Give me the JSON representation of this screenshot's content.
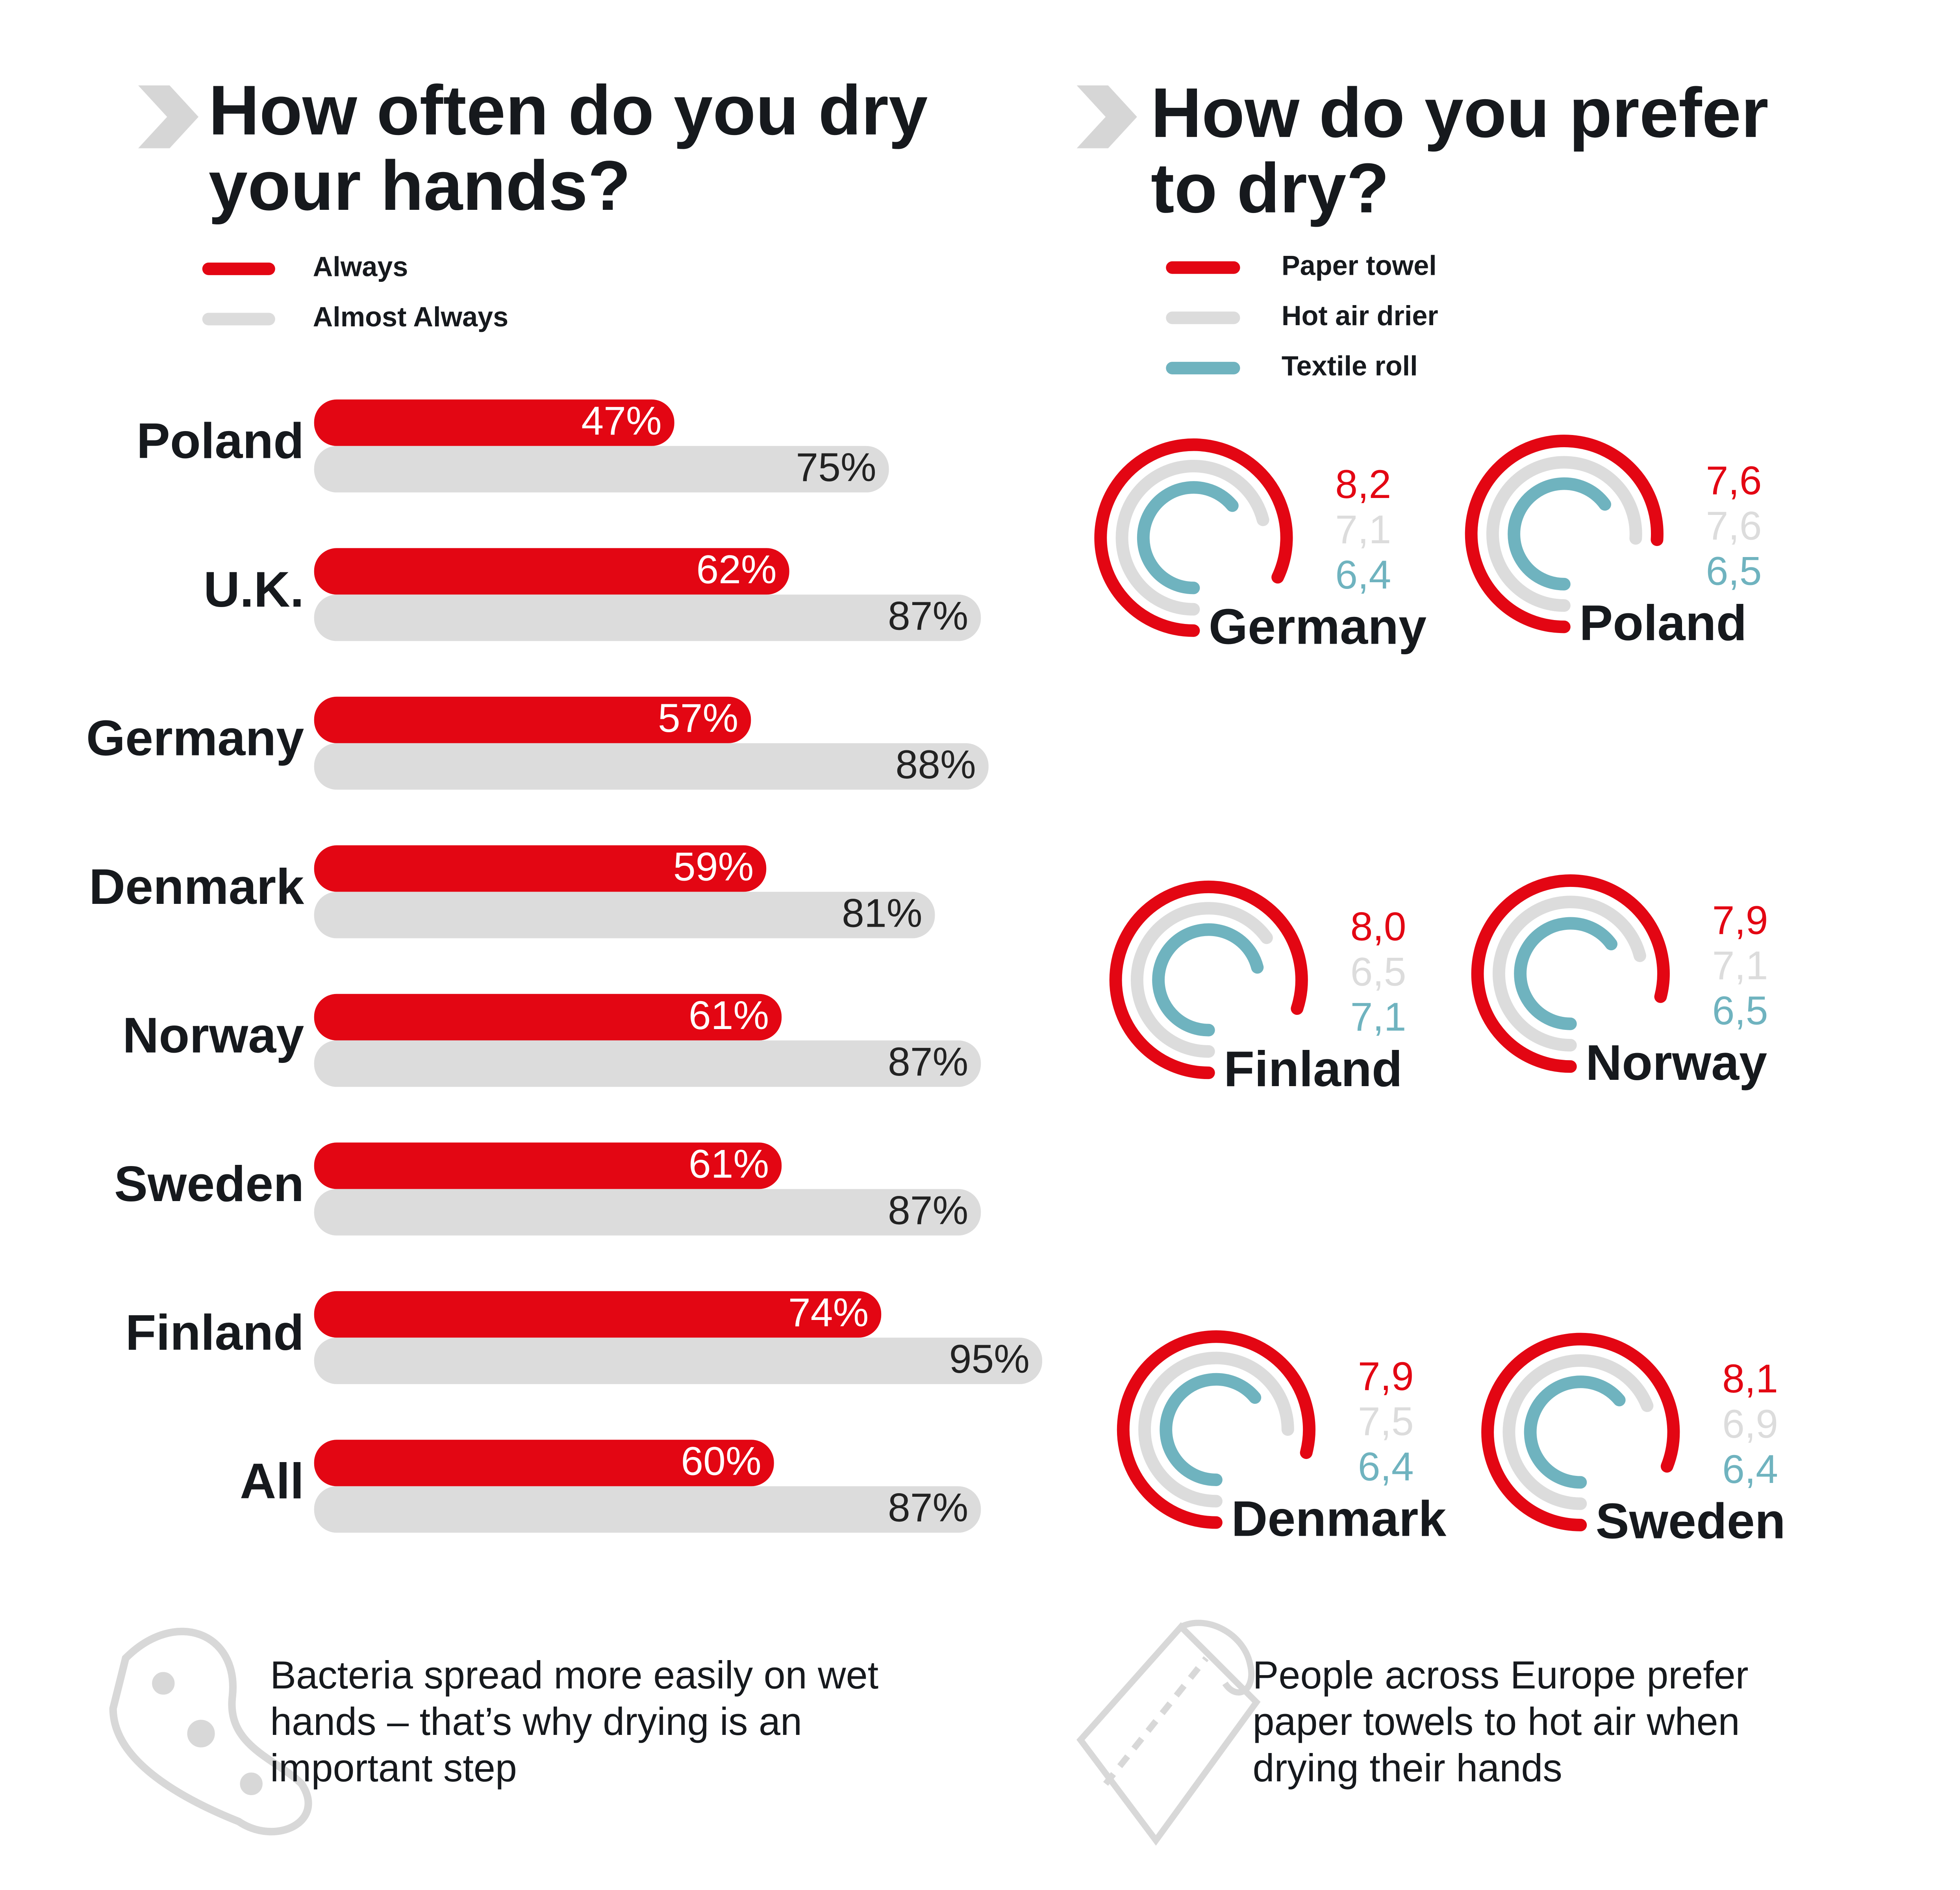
{
  "chart_data": [
    {
      "type": "bar",
      "orientation": "horizontal",
      "title": "How often do you dry your hands?",
      "categories": [
        "Poland",
        "U.K.",
        "Germany",
        "Denmark",
        "Norway",
        "Sweden",
        "Finland",
        "All"
      ],
      "series": [
        {
          "name": "Always",
          "color": "#e30613",
          "values": [
            47,
            62,
            57,
            59,
            61,
            61,
            74,
            60
          ],
          "value_labels": [
            "47%",
            "62%",
            "57%",
            "59%",
            "61%",
            "61%",
            "74%",
            "60%"
          ]
        },
        {
          "name": "Almost Always",
          "color": "#dcdcdc",
          "values": [
            75,
            87,
            88,
            81,
            87,
            87,
            95,
            87
          ],
          "value_labels": [
            "75%",
            "87%",
            "88%",
            "81%",
            "87%",
            "87%",
            "95%",
            "87%"
          ]
        }
      ],
      "xlim": [
        0,
        100
      ],
      "annotation": "Bacteria spread more easily on wet hands – that’s why drying is an important step"
    },
    {
      "type": "radial-bar",
      "title": "How do you prefer to dry?",
      "categories": [
        "Germany",
        "Poland",
        "Finland",
        "Norway",
        "Denmark",
        "Sweden"
      ],
      "series": [
        {
          "name": "Paper towel",
          "color": "#e30613",
          "values": [
            8.2,
            7.6,
            8.0,
            7.9,
            7.9,
            8.1
          ],
          "value_labels": [
            "8,2",
            "7,6",
            "8,0",
            "7,9",
            "7,9",
            "8,1"
          ]
        },
        {
          "name": "Hot air drier",
          "color": "#dcdcdc",
          "values": [
            7.1,
            7.6,
            6.5,
            7.1,
            7.5,
            6.9
          ],
          "value_labels": [
            "7,1",
            "7,6",
            "6,5",
            "7,1",
            "7,5",
            "6,9"
          ]
        },
        {
          "name": "Textile roll",
          "color": "#6fb3bf",
          "values": [
            6.4,
            6.5,
            7.1,
            6.5,
            6.4,
            6.4
          ],
          "value_labels": [
            "6,4",
            "6,5",
            "7,1",
            "6,5",
            "6,4",
            "6,4"
          ]
        }
      ],
      "rlim": [
        0,
        10
      ],
      "annotation": "People across Europe prefer paper towels to hot air when drying their hands"
    }
  ]
}
